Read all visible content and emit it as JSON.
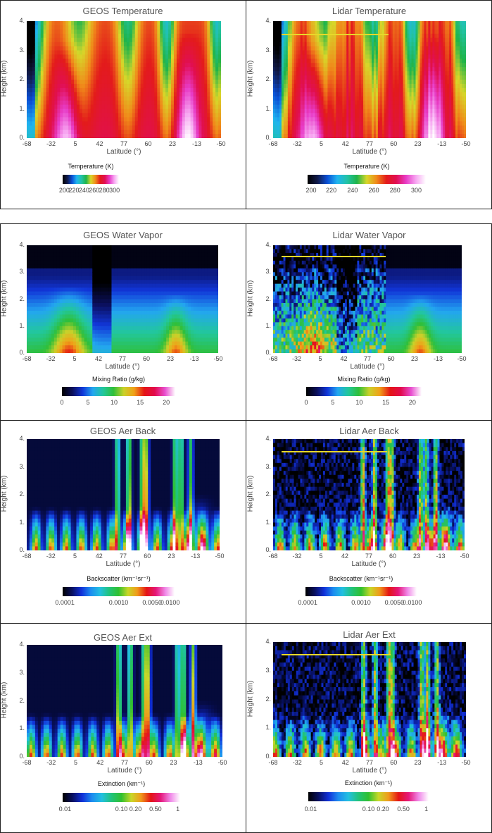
{
  "x_ticks": [
    "-68",
    "-32",
    "5",
    "42",
    "77",
    "60",
    "23",
    "-13",
    "-50"
  ],
  "y_ticks": [
    "0.",
    "1.",
    "2.",
    "3.",
    "4."
  ],
  "ylabel": "Height (km)",
  "xlabel": "Latitude (°)",
  "panels": [
    {
      "title": "GEOS Temperature",
      "cb_title": "Temperature (K)",
      "cb_ticks": [
        "200",
        "220",
        "240",
        "260",
        "280",
        "300"
      ]
    },
    {
      "title": "Lidar Temperature",
      "cb_title": "Temperature (K)",
      "cb_ticks": [
        "200",
        "220",
        "240",
        "260",
        "280",
        "300"
      ]
    },
    {
      "title": "GEOS Water Vapor",
      "cb_title": "Mixing Ratio (g/kg)",
      "cb_ticks": [
        "0",
        "5",
        "10",
        "15",
        "20"
      ]
    },
    {
      "title": "Lidar Water Vapor",
      "cb_title": "Mixing Ratio (g/kg)",
      "cb_ticks": [
        "0",
        "5",
        "10",
        "15",
        "20"
      ]
    },
    {
      "title": "GEOS Aer Back",
      "cb_title": "Backscatter (km⁻¹sr⁻¹)",
      "cb_ticks": [
        "0.0001",
        "0.0010",
        "0.0050",
        "0.0100"
      ]
    },
    {
      "title": "Lidar Aer Back",
      "cb_title": "Backscatter (km⁻¹sr⁻¹)",
      "cb_ticks": [
        "0.0001",
        "0.0010",
        "0.0050",
        "0.0100"
      ]
    },
    {
      "title": "GEOS Aer Ext",
      "cb_title": "Extinction (km⁻¹)",
      "cb_ticks": [
        "0.01",
        "0.10",
        "0.20",
        "0.50",
        "1"
      ]
    },
    {
      "title": "Lidar Aer Ext",
      "cb_title": "Extinction (km⁻¹)",
      "cb_ticks": [
        "0.01",
        "0.10",
        "0.20",
        "0.50",
        "1"
      ]
    }
  ],
  "chart_data": [
    {
      "type": "heatmap",
      "title": "GEOS Temperature",
      "xlabel": "Latitude (°)",
      "ylabel": "Height (km)",
      "ylim": [
        0,
        4
      ],
      "colorbar": "Temperature (K)",
      "colorbar_range": [
        200,
        305
      ],
      "x_ticks": [
        "-68",
        "-32",
        "5",
        "42",
        "77",
        "60",
        "23",
        "-13",
        "-50"
      ]
    },
    {
      "type": "heatmap",
      "title": "Lidar Temperature",
      "xlabel": "Latitude (°)",
      "ylabel": "Height (km)",
      "ylim": [
        0,
        4
      ],
      "colorbar": "Temperature (K)",
      "colorbar_range": [
        200,
        305
      ],
      "x_ticks": [
        "-68",
        "-32",
        "5",
        "42",
        "77",
        "60",
        "23",
        "-13",
        "-50"
      ]
    },
    {
      "type": "heatmap",
      "title": "GEOS Water Vapor",
      "xlabel": "Latitude (°)",
      "ylabel": "Height (km)",
      "ylim": [
        0,
        4
      ],
      "colorbar": "Mixing Ratio (g/kg)",
      "colorbar_range": [
        0,
        20
      ],
      "x_ticks": [
        "-68",
        "-32",
        "5",
        "42",
        "77",
        "60",
        "23",
        "-13",
        "-50"
      ]
    },
    {
      "type": "heatmap",
      "title": "Lidar Water Vapor",
      "xlabel": "Latitude (°)",
      "ylabel": "Height (km)",
      "ylim": [
        0,
        4
      ],
      "colorbar": "Mixing Ratio (g/kg)",
      "colorbar_range": [
        0,
        22
      ],
      "x_ticks": [
        "-68",
        "-32",
        "5",
        "42",
        "77",
        "60",
        "23",
        "-13",
        "-50"
      ]
    },
    {
      "type": "heatmap",
      "title": "GEOS Aer Back",
      "xlabel": "Latitude (°)",
      "ylabel": "Height (km)",
      "ylim": [
        0,
        4
      ],
      "colorbar": "Backscatter (km⁻¹sr⁻¹)",
      "colorbar_range": [
        0.0001,
        0.01
      ],
      "x_ticks": [
        "-68",
        "-32",
        "5",
        "42",
        "77",
        "60",
        "23",
        "-13",
        "-50"
      ]
    },
    {
      "type": "heatmap",
      "title": "Lidar Aer Back",
      "xlabel": "Latitude (°)",
      "ylabel": "Height (km)",
      "ylim": [
        0,
        4
      ],
      "colorbar": "Backscatter (km⁻¹sr⁻¹)",
      "colorbar_range": [
        0.0001,
        0.01
      ],
      "x_ticks": [
        "-68",
        "-32",
        "5",
        "42",
        "77",
        "60",
        "23",
        "-13",
        "-50"
      ]
    },
    {
      "type": "heatmap",
      "title": "GEOS Aer Ext",
      "xlabel": "Latitude (°)",
      "ylabel": "Height (km)",
      "ylim": [
        0,
        4
      ],
      "colorbar": "Extinction (km⁻¹)",
      "colorbar_range": [
        0.01,
        1
      ],
      "x_ticks": [
        "-68",
        "-32",
        "5",
        "42",
        "77",
        "60",
        "23",
        "-13",
        "-50"
      ]
    },
    {
      "type": "heatmap",
      "title": "Lidar Aer Ext",
      "xlabel": "Latitude (°)",
      "ylabel": "Height (km)",
      "ylim": [
        0,
        4
      ],
      "colorbar": "Extinction (km⁻¹)",
      "colorbar_range": [
        0.01,
        1
      ],
      "x_ticks": [
        "-68",
        "-32",
        "5",
        "42",
        "77",
        "60",
        "23",
        "-13",
        "-50"
      ]
    }
  ]
}
